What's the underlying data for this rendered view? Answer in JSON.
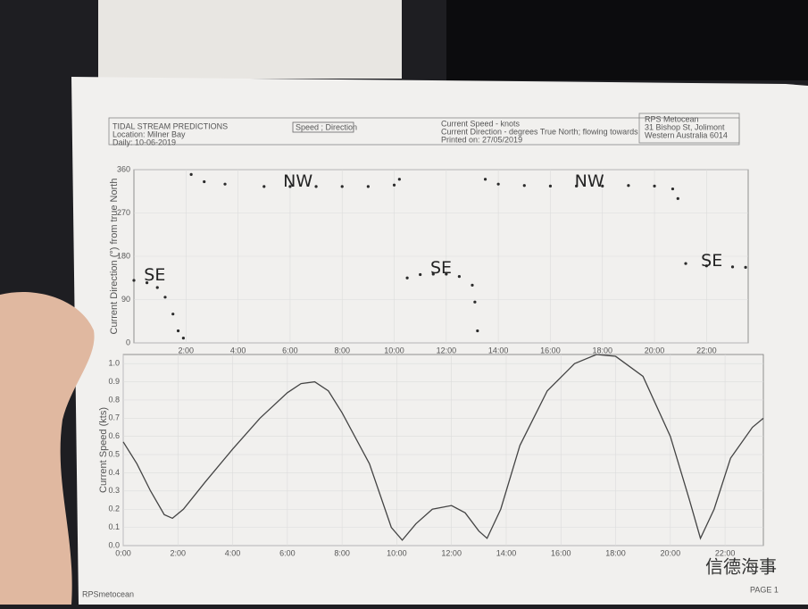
{
  "header": {
    "title": "TIDAL STREAM PREDICTIONS",
    "location": "Location: Milner Bay",
    "daily": "Daily: 10-06-2019",
    "mode": "Speed ; Direction",
    "speed_note": "Current Speed - knots",
    "direction_note": "Current Direction - degrees True North; flowing towards",
    "printed": "Printed on: 27/05/2019",
    "company": "RPS Metocean",
    "address1": "31 Bishop St, Jolimont",
    "address2": "Western Australia 6014"
  },
  "footer": {
    "left": "RPSmetocean",
    "right": "PAGE 1"
  },
  "watermark": "信德海事",
  "chart_data": [
    {
      "type": "scatter",
      "ylabel": "Current Direction (°) from true North",
      "grid": true,
      "xlim": [
        0,
        23.6
      ],
      "ylim": [
        0,
        360
      ],
      "xticks": [
        {
          "value": 2,
          "label": "2:00"
        },
        {
          "value": 4,
          "label": "4:00"
        },
        {
          "value": 6,
          "label": "6:00"
        },
        {
          "value": 8,
          "label": "8:00"
        },
        {
          "value": 10,
          "label": "10:00"
        },
        {
          "value": 12,
          "label": "12:00"
        },
        {
          "value": 14,
          "label": "14:00"
        },
        {
          "value": 16,
          "label": "16:00"
        },
        {
          "value": 18,
          "label": "18:00"
        },
        {
          "value": 20,
          "label": "20:00"
        },
        {
          "value": 22,
          "label": "22:00"
        }
      ],
      "yticks": [
        0,
        90,
        180,
        270,
        360
      ],
      "series": [
        {
          "color": "#2b2b2b",
          "x": [
            0,
            0.5,
            0.9,
            1.2,
            1.5,
            1.7,
            1.9,
            2.2,
            2.7,
            3.5,
            5,
            6,
            7,
            8,
            9,
            10,
            10.2,
            10.5,
            11,
            11.5,
            12,
            12.5,
            13,
            13.1,
            13.2,
            13.5,
            14,
            15,
            16,
            17,
            18,
            19,
            20,
            20.7,
            20.9,
            21.2,
            22,
            23,
            23.5
          ],
          "values": [
            130,
            125,
            115,
            95,
            60,
            25,
            10,
            350,
            335,
            330,
            325,
            325,
            325,
            325,
            325,
            328,
            340,
            135,
            142,
            143,
            143,
            138,
            120,
            85,
            25,
            340,
            330,
            327,
            326,
            326,
            326,
            327,
            326,
            320,
            300,
            165,
            160,
            158,
            157
          ]
        }
      ],
      "annotations": [
        {
          "text": "SE",
          "x": 0.8,
          "y": 140
        },
        {
          "text": "NW",
          "x": 6.3,
          "y": 335
        },
        {
          "text": "SE",
          "x": 11.8,
          "y": 155
        },
        {
          "text": "NW",
          "x": 17.5,
          "y": 335
        },
        {
          "text": "SE",
          "x": 22.2,
          "y": 170
        }
      ]
    },
    {
      "type": "line",
      "ylabel": "Current Speed (kts)",
      "grid": true,
      "xlim": [
        0,
        23.4
      ],
      "ylim": [
        0,
        1.05
      ],
      "xticks": [
        {
          "value": 0,
          "label": "0:00"
        },
        {
          "value": 2,
          "label": "2:00"
        },
        {
          "value": 4,
          "label": "4:00"
        },
        {
          "value": 6,
          "label": "6:00"
        },
        {
          "value": 8,
          "label": "8:00"
        },
        {
          "value": 10,
          "label": "10:00"
        },
        {
          "value": 12,
          "label": "12:00"
        },
        {
          "value": 14,
          "label": "14:00"
        },
        {
          "value": 16,
          "label": "16:00"
        },
        {
          "value": 18,
          "label": "18:00"
        },
        {
          "value": 20,
          "label": "20:00"
        },
        {
          "value": 22,
          "label": "22:00"
        }
      ],
      "yticks": [
        {
          "value": 0,
          "label": "0.0"
        },
        0.1,
        0.2,
        0.3,
        0.4,
        0.5,
        0.6,
        0.7,
        0.8,
        0.9,
        {
          "value": 1,
          "label": "1.0"
        }
      ],
      "series": [
        {
          "color": "#444444",
          "x": [
            0,
            0.5,
            1,
            1.5,
            1.8,
            2.2,
            3,
            4,
            5,
            6,
            6.5,
            7,
            7.5,
            8,
            9,
            9.8,
            10.2,
            10.7,
            11.3,
            12,
            12.5,
            13,
            13.3,
            13.8,
            14.5,
            15.5,
            16.5,
            17.3,
            18,
            19,
            20,
            20.7,
            21.1,
            21.6,
            22.2,
            23,
            23.4
          ],
          "values": [
            0.57,
            0.45,
            0.3,
            0.17,
            0.15,
            0.2,
            0.35,
            0.53,
            0.7,
            0.84,
            0.89,
            0.9,
            0.85,
            0.73,
            0.45,
            0.1,
            0.03,
            0.12,
            0.2,
            0.22,
            0.18,
            0.08,
            0.04,
            0.2,
            0.55,
            0.85,
            1,
            1.05,
            1.04,
            0.93,
            0.6,
            0.25,
            0.04,
            0.2,
            0.48,
            0.65,
            0.7
          ]
        }
      ],
      "annotations": []
    }
  ]
}
